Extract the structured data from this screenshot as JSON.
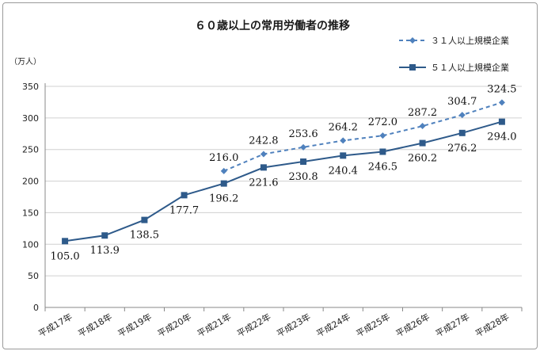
{
  "chart_data": {
    "type": "line",
    "title": "６０歳以上の常用労働者の推移",
    "unit_label": "（万人）",
    "categories": [
      "平成17年",
      "平成18年",
      "平成19年",
      "平成20年",
      "平成21年",
      "平成22年",
      "平成23年",
      "平成24年",
      "平成25年",
      "平成26年",
      "平成27年",
      "平成28年"
    ],
    "ylim": [
      0,
      350
    ],
    "yticks": [
      "0",
      "50",
      "100",
      "150",
      "200",
      "250",
      "300",
      "350"
    ],
    "grid": true,
    "legend_position": "top-right",
    "series": [
      {
        "name": "３１人以上規模企業",
        "style": "dashed",
        "marker": "diamond",
        "color": "#4f81bd",
        "values": [
          null,
          null,
          null,
          null,
          216.0,
          242.8,
          253.6,
          264.2,
          272.0,
          287.2,
          304.7,
          324.5
        ],
        "labels": [
          "",
          "",
          "",
          "",
          "216.0",
          "242.8",
          "253.6",
          "264.2",
          "272.0",
          "287.2",
          "304.7",
          "324.5"
        ]
      },
      {
        "name": "５１人以上規模企業",
        "style": "solid",
        "marker": "square",
        "color": "#2e5a8a",
        "values": [
          105.0,
          113.9,
          138.5,
          177.7,
          196.2,
          221.6,
          230.8,
          240.4,
          246.5,
          260.2,
          276.2,
          294.0
        ],
        "labels": [
          "105.0",
          "113.9",
          "138.5",
          "177.7",
          "196.2",
          "221.6",
          "230.8",
          "240.4",
          "246.5",
          "260.2",
          "276.2",
          "294.0"
        ]
      }
    ]
  }
}
